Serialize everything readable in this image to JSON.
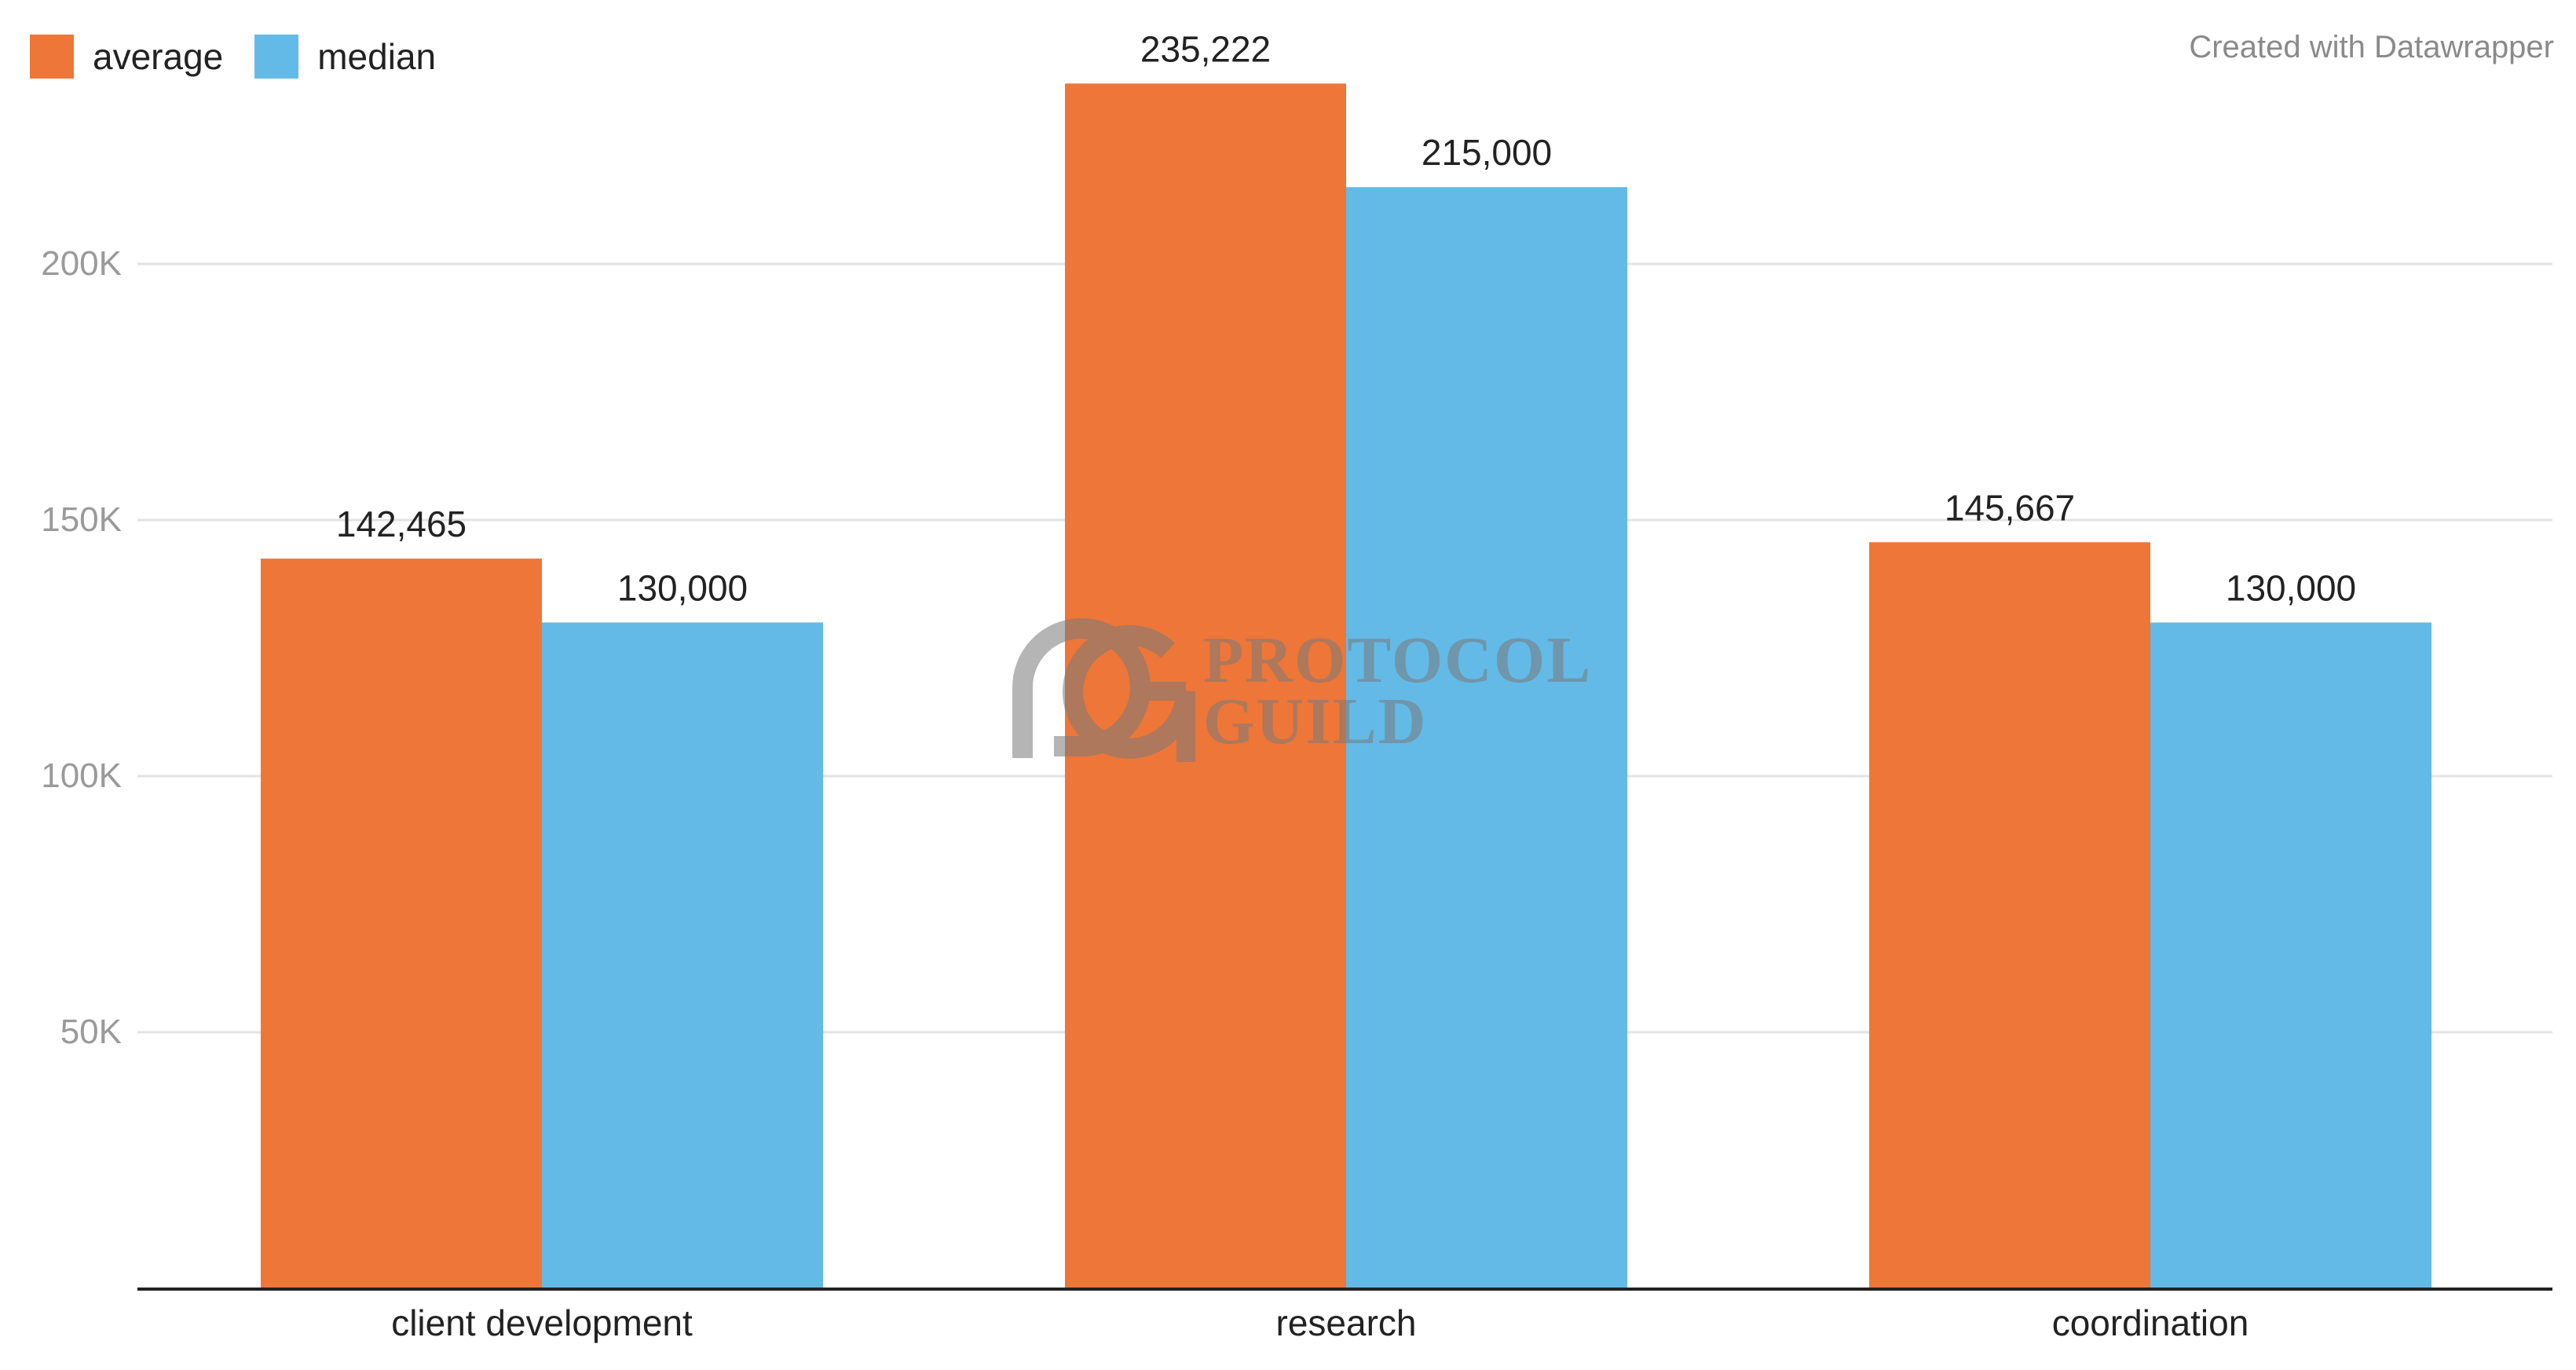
{
  "credit": "Created with Datawrapper",
  "watermark": {
    "line1": "PROTOCOL",
    "line2": "GUILD"
  },
  "colors": {
    "average": "#ED7638",
    "median": "#63BAE7",
    "grid": "#e3e3e3",
    "axis": "#222222",
    "tick_text": "#9a9a9a",
    "label_text": "#222222"
  },
  "chart_data": {
    "type": "bar",
    "categories": [
      "client development",
      "research",
      "coordination"
    ],
    "series": [
      {
        "name": "average",
        "color": "#ED7638",
        "values": [
          142465,
          235222,
          145667
        ],
        "labels": [
          "142,465",
          "235,222",
          "145,667"
        ]
      },
      {
        "name": "median",
        "color": "#63BAE7",
        "values": [
          130000,
          215000,
          130000
        ],
        "labels": [
          "130,000",
          "215,000",
          "130,000"
        ]
      }
    ],
    "yticks": [
      {
        "value": 50000,
        "label": "50K"
      },
      {
        "value": 100000,
        "label": "100K"
      },
      {
        "value": 150000,
        "label": "150K"
      },
      {
        "value": 200000,
        "label": "200K"
      }
    ],
    "ylim": [
      0,
      250000
    ],
    "grid": true,
    "legend": "top-left",
    "title": "",
    "xlabel": "",
    "ylabel": ""
  }
}
